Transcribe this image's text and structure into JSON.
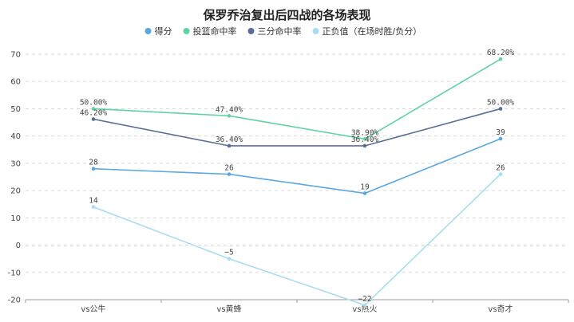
{
  "chart_data": {
    "type": "line",
    "title": "保罗乔治复出后四战的各场表现",
    "xlabel": "",
    "ylabel": "",
    "ylim": [
      -20,
      70
    ],
    "yticks": [
      -20,
      -10,
      0,
      10,
      20,
      30,
      40,
      50,
      60,
      70
    ],
    "ytick_labels": [
      "-20",
      "-10",
      "0",
      "10",
      "20",
      "30",
      "40",
      "50",
      "60",
      "70"
    ],
    "categories": [
      "vs公牛",
      "vs黄蜂",
      "vs热火",
      "vs奇才"
    ],
    "grid": true,
    "legend_position": "top",
    "series": [
      {
        "name": "得分",
        "color": "#5ba7e0",
        "values": [
          28,
          26,
          19,
          39
        ],
        "labels": [
          "28",
          "26",
          "19",
          "39"
        ]
      },
      {
        "name": "投篮命中率",
        "color": "#5fd3a3",
        "values": [
          50.0,
          47.4,
          38.9,
          68.2
        ],
        "labels": [
          "50.00%",
          "47.40%",
          "38.90%",
          "68.20%"
        ]
      },
      {
        "name": "三分命中率",
        "color": "#5b6f94",
        "values": [
          46.2,
          36.4,
          36.4,
          50.0
        ],
        "labels": [
          "46.20%",
          "36.40%",
          "36.40%",
          "50.00%"
        ]
      },
      {
        "name": "正负值（在场时胜/负分）",
        "color": "#a6ddf0",
        "values": [
          14,
          -5,
          -22,
          26
        ],
        "labels": [
          "14",
          "−5",
          "−22",
          "26"
        ]
      }
    ]
  }
}
